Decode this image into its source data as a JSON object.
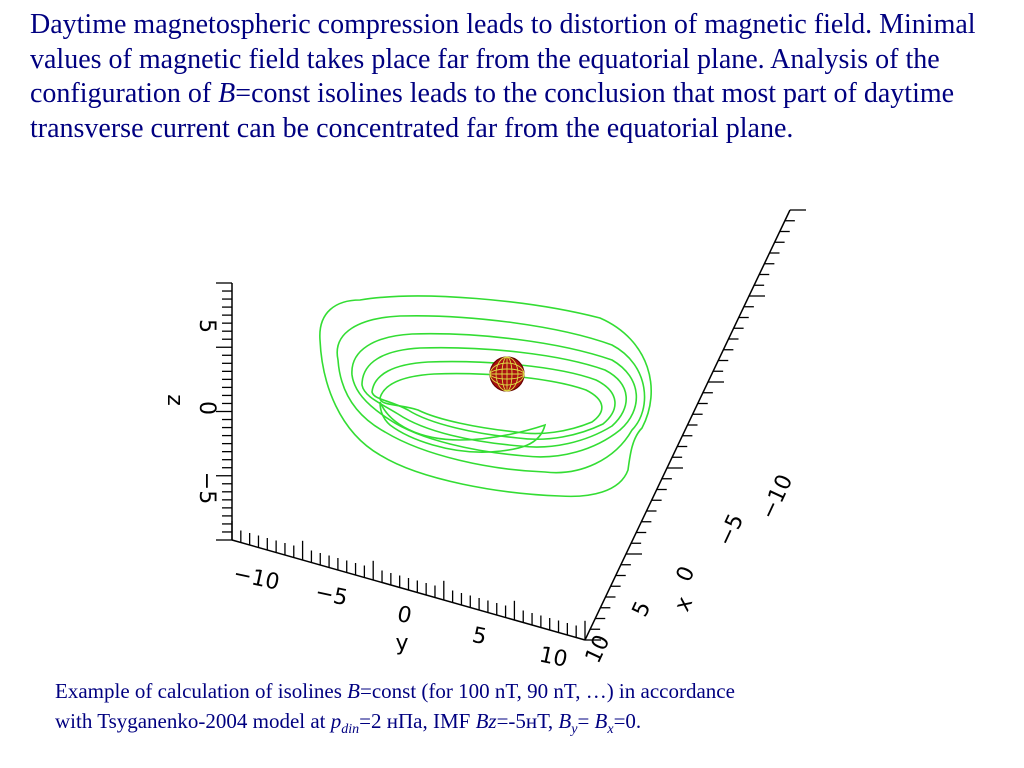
{
  "paragraph": {
    "part1": "Daytime magnetospheric compression leads to distortion of magnetic field. Minimal values of magnetic field takes place far from the equatorial plane. Analysis of the configuration of ",
    "var_b": "B",
    "part2": "=const isolines leads to the conclusion that most part of daytime transverse current can be concentrated far from the equatorial plane."
  },
  "plot": {
    "z_label": "z",
    "y_label": "y",
    "x_label": "x",
    "z_ticks": [
      "5",
      "0",
      "−5"
    ],
    "y_ticks": [
      "−10",
      "−5",
      "0",
      "5",
      "10"
    ],
    "x_ticks": [
      "10",
      "5",
      "0",
      "−5",
      "−10"
    ],
    "isoline_color": "#33dd33",
    "earth_color": "#aa1111",
    "earth_grid_color": "#dddd44"
  },
  "caption": {
    "line1_a": "Example of calculation of isolines ",
    "line1_b": "B",
    "line1_c": "=const (for 100 nT, 90 nT, …) in accordance",
    "line2_a": "with Tsyganenko-2004 model at ",
    "p": "p",
    "p_sub": "din",
    "line2_b": "=2 нПа, IMF ",
    "bz": "Bz",
    "line2_c": "=-5нТ,  ",
    "by": "B",
    "by_sub": "y",
    "eq": "= ",
    "bx": "B",
    "bx_sub": "x",
    "end": "=0."
  }
}
